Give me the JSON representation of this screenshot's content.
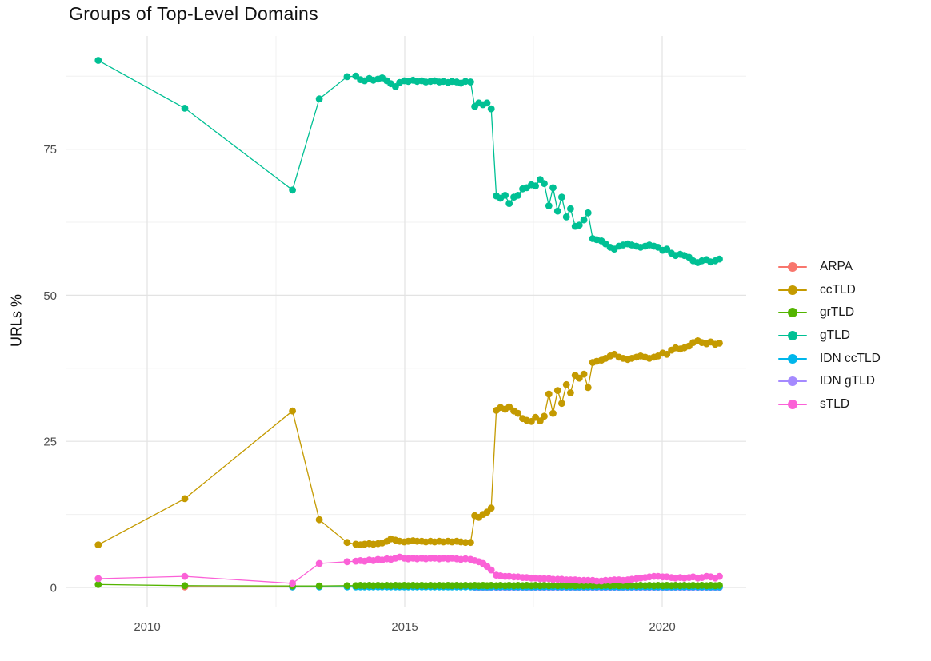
{
  "title": "Groups of Top-Level Domains",
  "axes": {
    "y_label": "URLs %",
    "y_ticks": [
      "0",
      "25",
      "50",
      "75"
    ],
    "y_tick_values": [
      0,
      25,
      50,
      75
    ],
    "y_minor_values": [
      12.5,
      37.5,
      62.5,
      87.5
    ],
    "x_ticks": [
      "2010",
      "2015",
      "2020"
    ],
    "x_tick_values": [
      2010,
      2015,
      2020
    ],
    "x_minor_values": [
      2012.5,
      2017.5
    ],
    "grid_major_color": "#e3e3e3",
    "grid_minor_color": "#f0f0f0",
    "tick_text_color": "#4d4d4d"
  },
  "legend": {
    "position": "right",
    "items": [
      {
        "label": "ARPA",
        "color": "#F8766D"
      },
      {
        "label": "ccTLD",
        "color": "#C49A00"
      },
      {
        "label": "grTLD",
        "color": "#53B400"
      },
      {
        "label": "gTLD",
        "color": "#00C094"
      },
      {
        "label": "IDN ccTLD",
        "color": "#00B6EB"
      },
      {
        "label": "IDN gTLD",
        "color": "#A58AFF"
      },
      {
        "label": "sTLD",
        "color": "#FB61D7"
      }
    ]
  },
  "chart_data": {
    "type": "line",
    "title": "Groups of Top-Level Domains",
    "xlabel": "",
    "ylabel": "URLs %",
    "xlim": [
      2008.4,
      2021.6
    ],
    "ylim": [
      -2,
      94
    ],
    "grid": true,
    "legend_position": "right",
    "marker": "point",
    "series": [
      {
        "name": "ARPA",
        "color": "#F8766D",
        "x": [
          2010.73,
          2012.82
        ],
        "y": [
          0.1,
          0.1
        ]
      },
      {
        "name": "IDN gTLD",
        "color": "#A58AFF",
        "x": [
          2016.36,
          2016.44,
          2016.52,
          2016.6,
          2016.68,
          2016.78,
          2016.86,
          2016.95,
          2017.03,
          2017.12,
          2017.2,
          2017.29,
          2017.37,
          2017.46,
          2017.54,
          2017.63,
          2017.71,
          2017.8,
          2017.88,
          2017.97,
          2018.05,
          2018.14,
          2018.22,
          2018.31,
          2018.39,
          2018.48,
          2018.56,
          2018.65,
          2018.73,
          2018.82,
          2018.9,
          2018.99,
          2019.07,
          2019.16,
          2019.24,
          2019.33,
          2019.41,
          2019.5,
          2019.58,
          2019.67,
          2019.75,
          2019.84,
          2019.92,
          2020.01,
          2020.09,
          2020.18,
          2020.26,
          2020.35,
          2020.43,
          2020.52,
          2020.6,
          2020.69,
          2020.77,
          2020.86,
          2020.94,
          2021.03,
          2021.11
        ],
        "y_fill": 0.0
      },
      {
        "name": "IDN ccTLD",
        "color": "#00B6EB",
        "x": [
          2012.82,
          2013.34,
          2013.88,
          2014.05,
          2014.14,
          2014.22,
          2014.31,
          2014.39,
          2014.48,
          2014.56,
          2014.65,
          2014.73,
          2014.82,
          2014.9,
          2014.99,
          2015.07,
          2015.16,
          2015.24,
          2015.33,
          2015.41,
          2015.5,
          2015.58,
          2015.67,
          2015.75,
          2015.84,
          2015.92,
          2016.01,
          2016.09,
          2016.18,
          2016.28,
          2016.36,
          2016.44,
          2016.52,
          2016.6,
          2016.68,
          2016.78,
          2016.86,
          2016.95,
          2017.03,
          2017.12,
          2017.2,
          2017.29,
          2017.37,
          2017.46,
          2017.54,
          2017.63,
          2017.71,
          2017.8,
          2017.88,
          2017.97,
          2018.05,
          2018.14,
          2018.22,
          2018.31,
          2018.39,
          2018.48,
          2018.56,
          2018.65,
          2018.73,
          2018.82,
          2018.9,
          2018.99,
          2019.07,
          2019.16,
          2019.24,
          2019.33,
          2019.41,
          2019.5,
          2019.58,
          2019.67,
          2019.75,
          2019.84,
          2019.92,
          2020.01,
          2020.09,
          2020.18,
          2020.26,
          2020.35,
          2020.43,
          2020.52,
          2020.6,
          2020.69,
          2020.77,
          2020.86,
          2020.94,
          2021.03,
          2021.11
        ],
        "y_fill": 0.1
      },
      {
        "name": "grTLD",
        "color": "#53B400",
        "x": [
          2009.05,
          2010.73,
          2012.82,
          2013.34,
          2013.88,
          2014.05,
          2014.14,
          2014.22,
          2014.31,
          2014.39,
          2014.48,
          2014.56,
          2014.65,
          2014.73,
          2014.82,
          2014.9,
          2014.99,
          2015.07,
          2015.16,
          2015.24,
          2015.33,
          2015.41,
          2015.5,
          2015.58,
          2015.67,
          2015.75,
          2015.84,
          2015.92,
          2016.01,
          2016.09,
          2016.18,
          2016.28,
          2016.36,
          2016.44,
          2016.52,
          2016.6,
          2016.68,
          2016.78,
          2016.86,
          2016.95,
          2017.03,
          2017.12,
          2017.2,
          2017.29,
          2017.37,
          2017.46,
          2017.54,
          2017.63,
          2017.71,
          2017.8,
          2017.88,
          2017.97,
          2018.05,
          2018.14,
          2018.22,
          2018.31,
          2018.39,
          2018.48,
          2018.56,
          2018.65,
          2018.73,
          2018.82,
          2018.9,
          2018.99,
          2019.07,
          2019.16,
          2019.24,
          2019.33,
          2019.41,
          2019.5,
          2019.58,
          2019.67,
          2019.75,
          2019.84,
          2019.92,
          2020.01,
          2020.09,
          2020.18,
          2020.26,
          2020.35,
          2020.43,
          2020.52,
          2020.6,
          2020.69,
          2020.77,
          2020.86,
          2020.94,
          2021.03,
          2021.11
        ],
        "y": [
          0.5,
          0.3,
          0.25,
          0.25,
          0.3,
          0.3,
          0.35,
          0.3,
          0.35,
          0.3,
          0.35,
          0.3,
          0.35,
          0.3,
          0.35,
          0.3,
          0.35,
          0.3,
          0.35,
          0.3,
          0.35,
          0.3,
          0.35,
          0.3,
          0.35,
          0.3,
          0.35,
          0.3,
          0.35,
          0.3,
          0.35,
          0.3,
          0.35,
          0.3,
          0.35,
          0.3,
          0.35,
          0.3,
          0.35,
          0.3,
          0.35,
          0.3,
          0.35,
          0.3,
          0.35,
          0.3,
          0.35,
          0.3,
          0.35,
          0.3,
          0.35,
          0.3,
          0.35,
          0.3,
          0.35,
          0.3,
          0.35,
          0.3,
          0.35,
          0.3,
          0.35,
          0.3,
          0.35,
          0.3,
          0.35,
          0.3,
          0.35,
          0.3,
          0.35,
          0.3,
          0.35,
          0.3,
          0.35,
          0.3,
          0.35,
          0.3,
          0.35,
          0.3,
          0.35,
          0.3,
          0.35,
          0.3,
          0.35,
          0.3,
          0.35,
          0.3,
          0.35,
          0.3,
          0.35
        ]
      },
      {
        "name": "ccTLD",
        "color": "#C49A00",
        "x": [
          2009.05,
          2010.73,
          2012.82,
          2013.34,
          2013.88,
          2014.05,
          2014.14,
          2014.22,
          2014.31,
          2014.39,
          2014.48,
          2014.56,
          2014.65,
          2014.73,
          2014.82,
          2014.9,
          2014.99,
          2015.07,
          2015.16,
          2015.24,
          2015.33,
          2015.41,
          2015.5,
          2015.58,
          2015.67,
          2015.75,
          2015.84,
          2015.92,
          2016.01,
          2016.09,
          2016.18,
          2016.28,
          2016.36,
          2016.44,
          2016.52,
          2016.6,
          2016.68,
          2016.78,
          2016.86,
          2016.95,
          2017.03,
          2017.12,
          2017.2,
          2017.29,
          2017.37,
          2017.46,
          2017.54,
          2017.63,
          2017.71,
          2017.8,
          2017.88,
          2017.97,
          2018.05,
          2018.14,
          2018.22,
          2018.31,
          2018.39,
          2018.48,
          2018.56,
          2018.65,
          2018.73,
          2018.82,
          2018.9,
          2018.99,
          2019.07,
          2019.16,
          2019.24,
          2019.33,
          2019.41,
          2019.5,
          2019.58,
          2019.67,
          2019.75,
          2019.84,
          2019.92,
          2020.01,
          2020.09,
          2020.18,
          2020.26,
          2020.35,
          2020.43,
          2020.52,
          2020.6,
          2020.69,
          2020.77,
          2020.86,
          2020.94,
          2021.03,
          2021.11
        ],
        "y": [
          7.3,
          15.2,
          30.2,
          11.6,
          7.7,
          7.4,
          7.3,
          7.4,
          7.5,
          7.4,
          7.5,
          7.6,
          7.9,
          8.3,
          8.1,
          7.9,
          7.8,
          7.9,
          8,
          7.9,
          7.9,
          7.8,
          7.9,
          7.8,
          7.9,
          7.8,
          7.9,
          7.8,
          7.9,
          7.8,
          7.7,
          7.7,
          12.3,
          12,
          12.5,
          12.9,
          13.6,
          30.3,
          30.8,
          30.5,
          30.9,
          30.2,
          29.8,
          28.9,
          28.6,
          28.4,
          29.1,
          28.5,
          29.3,
          33.1,
          29.8,
          33.7,
          31.5,
          34.7,
          33.3,
          36.3,
          35.8,
          36.5,
          34.2,
          38.5,
          38.7,
          38.9,
          39.2,
          39.6,
          39.9,
          39.4,
          39.2,
          39,
          39.2,
          39.4,
          39.6,
          39.4,
          39.2,
          39.4,
          39.6,
          40.1,
          39.9,
          40.6,
          41,
          40.8,
          41,
          41.3,
          41.9,
          42.2,
          41.9,
          41.7,
          42,
          41.6,
          41.8
        ]
      },
      {
        "name": "gTLD",
        "color": "#00C094",
        "x": [
          2009.05,
          2010.73,
          2012.82,
          2013.34,
          2013.88,
          2014.05,
          2014.14,
          2014.22,
          2014.31,
          2014.39,
          2014.48,
          2014.56,
          2014.65,
          2014.73,
          2014.82,
          2014.9,
          2014.99,
          2015.07,
          2015.16,
          2015.24,
          2015.33,
          2015.41,
          2015.5,
          2015.58,
          2015.67,
          2015.75,
          2015.84,
          2015.92,
          2016.01,
          2016.09,
          2016.18,
          2016.28,
          2016.36,
          2016.44,
          2016.52,
          2016.6,
          2016.68,
          2016.78,
          2016.86,
          2016.95,
          2017.03,
          2017.12,
          2017.2,
          2017.29,
          2017.37,
          2017.46,
          2017.54,
          2017.63,
          2017.71,
          2017.8,
          2017.88,
          2017.97,
          2018.05,
          2018.14,
          2018.22,
          2018.31,
          2018.39,
          2018.48,
          2018.56,
          2018.65,
          2018.73,
          2018.82,
          2018.9,
          2018.99,
          2019.07,
          2019.16,
          2019.24,
          2019.33,
          2019.41,
          2019.5,
          2019.58,
          2019.67,
          2019.75,
          2019.84,
          2019.92,
          2020.01,
          2020.09,
          2020.18,
          2020.26,
          2020.35,
          2020.43,
          2020.52,
          2020.6,
          2020.69,
          2020.77,
          2020.86,
          2020.94,
          2021.03,
          2021.11
        ],
        "y": [
          90.2,
          82,
          68,
          83.6,
          87.4,
          87.5,
          86.9,
          86.7,
          87.1,
          86.8,
          87,
          87.2,
          86.7,
          86.2,
          85.7,
          86.4,
          86.7,
          86.6,
          86.8,
          86.6,
          86.7,
          86.5,
          86.6,
          86.7,
          86.5,
          86.6,
          86.4,
          86.6,
          86.5,
          86.3,
          86.6,
          86.5,
          82.3,
          82.9,
          82.6,
          82.9,
          81.9,
          67,
          66.6,
          67.1,
          65.7,
          66.8,
          67.1,
          68.2,
          68.4,
          68.9,
          68.7,
          69.8,
          69.1,
          65.3,
          68.4,
          64.4,
          66.8,
          63.4,
          64.8,
          61.8,
          62,
          62.9,
          64.1,
          59.7,
          59.5,
          59.3,
          58.8,
          58.2,
          57.9,
          58.4,
          58.6,
          58.8,
          58.6,
          58.4,
          58.2,
          58.4,
          58.6,
          58.4,
          58.2,
          57.7,
          57.9,
          57.2,
          56.8,
          57,
          56.8,
          56.5,
          55.9,
          55.6,
          55.9,
          56.1,
          55.7,
          55.9,
          56.2
        ]
      },
      {
        "name": "sTLD",
        "color": "#FB61D7",
        "x": [
          2009.05,
          2010.73,
          2012.82,
          2013.34,
          2013.88,
          2014.05,
          2014.14,
          2014.22,
          2014.31,
          2014.39,
          2014.48,
          2014.56,
          2014.65,
          2014.73,
          2014.82,
          2014.9,
          2014.99,
          2015.07,
          2015.16,
          2015.24,
          2015.33,
          2015.41,
          2015.5,
          2015.58,
          2015.67,
          2015.75,
          2015.84,
          2015.92,
          2016.01,
          2016.09,
          2016.18,
          2016.28,
          2016.36,
          2016.44,
          2016.52,
          2016.6,
          2016.68,
          2016.78,
          2016.86,
          2016.95,
          2017.03,
          2017.12,
          2017.2,
          2017.29,
          2017.37,
          2017.46,
          2017.54,
          2017.63,
          2017.71,
          2017.8,
          2017.88,
          2017.97,
          2018.05,
          2018.14,
          2018.22,
          2018.31,
          2018.39,
          2018.48,
          2018.56,
          2018.65,
          2018.73,
          2018.82,
          2018.9,
          2018.99,
          2019.07,
          2019.16,
          2019.24,
          2019.33,
          2019.41,
          2019.5,
          2019.58,
          2019.67,
          2019.75,
          2019.84,
          2019.92,
          2020.01,
          2020.09,
          2020.18,
          2020.26,
          2020.35,
          2020.43,
          2020.52,
          2020.6,
          2020.69,
          2020.77,
          2020.86,
          2020.94,
          2021.03,
          2021.11
        ],
        "y": [
          1.5,
          1.9,
          0.7,
          4.1,
          4.4,
          4.5,
          4.6,
          4.5,
          4.7,
          4.6,
          4.8,
          4.7,
          4.9,
          4.8,
          5,
          5.2,
          5,
          4.9,
          5,
          4.9,
          5,
          4.9,
          5,
          5,
          4.9,
          5,
          4.9,
          5,
          4.9,
          4.8,
          4.9,
          4.8,
          4.6,
          4.4,
          4.1,
          3.6,
          3,
          2.1,
          2,
          1.9,
          1.9,
          1.8,
          1.8,
          1.7,
          1.7,
          1.6,
          1.6,
          1.5,
          1.5,
          1.5,
          1.4,
          1.4,
          1.4,
          1.3,
          1.3,
          1.3,
          1.2,
          1.2,
          1.2,
          1.2,
          1.1,
          1.1,
          1.2,
          1.2,
          1.3,
          1.3,
          1.2,
          1.3,
          1.4,
          1.5,
          1.6,
          1.7,
          1.8,
          1.9,
          1.9,
          1.8,
          1.8,
          1.7,
          1.6,
          1.7,
          1.6,
          1.7,
          1.8,
          1.6,
          1.7,
          1.9,
          1.8,
          1.6,
          1.9
        ]
      }
    ]
  }
}
